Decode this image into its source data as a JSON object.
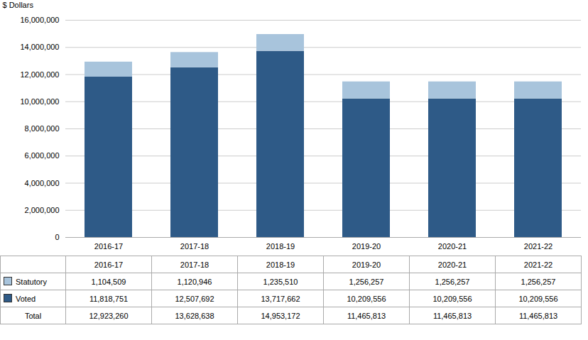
{
  "chart_data": {
    "type": "bar",
    "stacked": true,
    "grid": true,
    "ylabel": "$ Dollars",
    "categories": [
      "2016-17",
      "2017-18",
      "2018-19",
      "2019-20",
      "2020-21",
      "2021-22"
    ],
    "series": [
      {
        "name": "Voted",
        "color": "#2E5A87",
        "values": [
          11818751,
          12507692,
          13717662,
          10209556,
          10209556,
          10209556
        ],
        "value_labels": [
          "11,818,751",
          "12,507,692",
          "13,717,662",
          "10,209,556",
          "10,209,556",
          "10,209,556"
        ]
      },
      {
        "name": "Statutory",
        "color": "#A8C4DC",
        "values": [
          1104509,
          1120946,
          1235510,
          1256257,
          1256257,
          1256257
        ],
        "value_labels": [
          "1,104,509",
          "1,120,946",
          "1,235,510",
          "1,256,257",
          "1,256,257",
          "1,256,257"
        ]
      }
    ],
    "totals": {
      "name": "Total",
      "values": [
        12923260,
        13628638,
        14953172,
        11465813,
        11465813,
        11465813
      ],
      "value_labels": [
        "12,923,260",
        "13,628,638",
        "14,953,172",
        "11,465,813",
        "11,465,813",
        "11,465,813"
      ]
    },
    "ylim": [
      0,
      16000000
    ],
    "yticks": [
      0,
      {
        "value": 2000000,
        "label": "2,000,000"
      },
      {
        "value": 4000000,
        "label": "4,000,000"
      },
      {
        "value": 6000000,
        "label": "6,000,000"
      },
      {
        "value": 8000000,
        "label": "8,000,000"
      },
      {
        "value": 10000000,
        "label": "10,000,000"
      },
      {
        "value": 12000000,
        "label": "12,000,000"
      },
      {
        "value": 14000000,
        "label": "14,000,000"
      },
      {
        "value": 16000000,
        "label": "16,000,000"
      }
    ]
  }
}
